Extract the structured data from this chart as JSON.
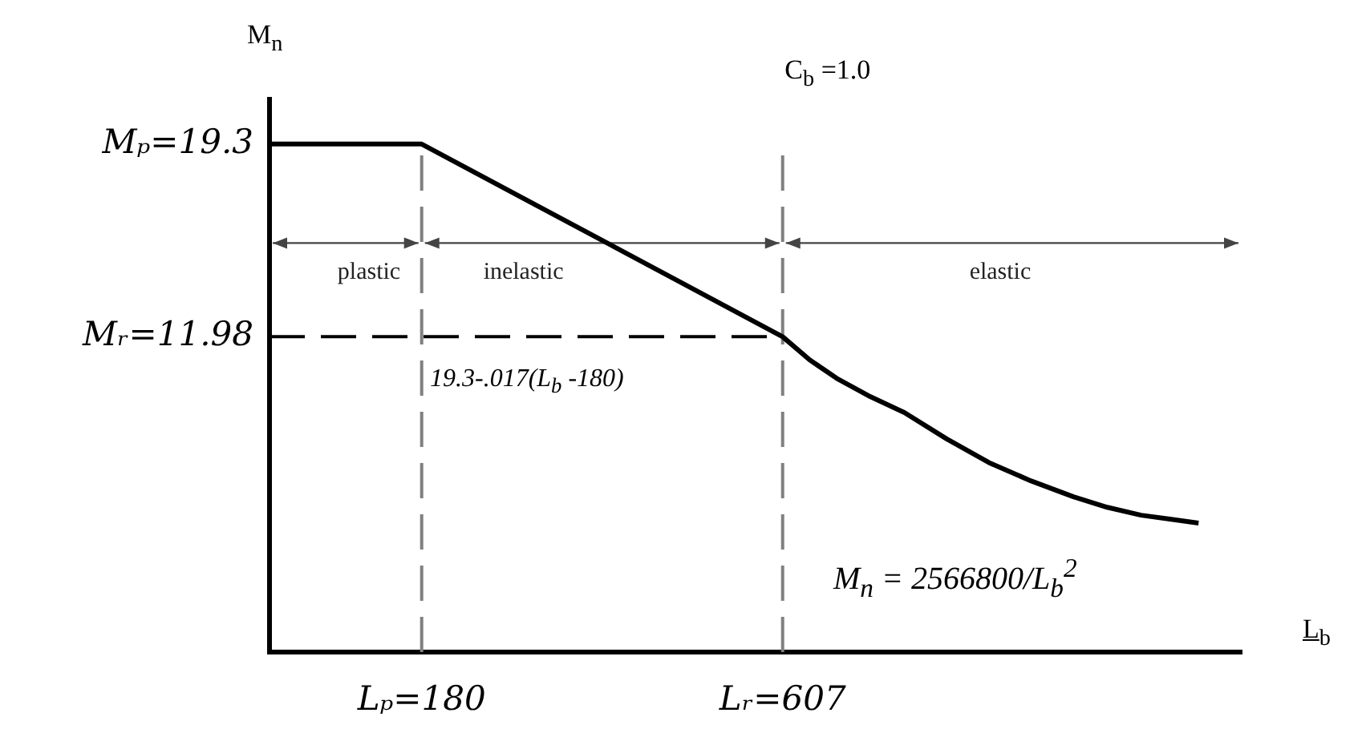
{
  "chart_data": {
    "type": "line",
    "xlabel": "L$_{b}$",
    "ylabel": "M$_{n}$",
    "xlim": [
      0,
      1150
    ],
    "ylim": [
      0,
      21
    ],
    "xticks": [
      {
        "value": 180,
        "label": "Lₚ=180"
      },
      {
        "value": 607,
        "label": "Lᵣ=607"
      }
    ],
    "yticks": [
      {
        "value": 11.98,
        "label": "Mᵣ=11.98"
      },
      {
        "value": 19.3,
        "label": "Mₚ=19.3"
      }
    ],
    "series": [
      {
        "color": "#000000",
        "x": [
          0,
          180,
          607,
          639,
          671,
          711,
          751,
          801,
          851,
          901,
          951,
          991,
          1031,
          1065,
          1099
        ],
        "values": [
          19.3,
          19.3,
          11.98,
          11.1,
          10.4,
          9.7,
          9.1,
          8.1,
          7.2,
          6.5,
          5.9,
          5.5,
          5.2,
          5.05,
          4.9
        ]
      }
    ],
    "ref_lines": [
      {
        "axis": "x",
        "value": 180,
        "color": "#808080",
        "line_style": "dashed"
      },
      {
        "axis": "x",
        "value": 607,
        "color": "#808080",
        "line_style": "dashed"
      },
      {
        "axis": "y",
        "value": 11.98,
        "color": "#000000",
        "line_style": "dashed"
      }
    ],
    "annotations": [
      "C$_{b}$ =1.0",
      "19.3-.017(L$_{b}$ -180)",
      "M$_{n}$ = 2566800/L$_{b}$$^{2}$",
      "plastic",
      "inelastic",
      "elastic"
    ],
    "marker": "none",
    "line_style": "solid",
    "grid": false,
    "legend": false
  }
}
